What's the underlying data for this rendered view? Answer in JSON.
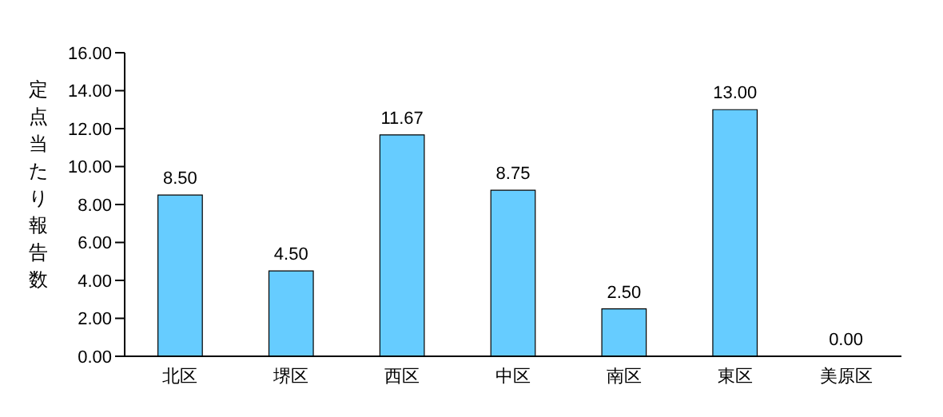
{
  "chart_data": {
    "type": "bar",
    "ylabel": "定点当たり報告数",
    "categories": [
      "北区",
      "堺区",
      "西区",
      "中区",
      "南区",
      "東区",
      "美原区"
    ],
    "values": [
      8.5,
      4.5,
      11.67,
      8.75,
      2.5,
      13.0,
      0.0
    ],
    "value_labels": [
      "8.50",
      "4.50",
      "11.67",
      "8.75",
      "2.50",
      "13.00",
      "0.00"
    ],
    "color": "#66ccff",
    "ylim": [
      0,
      16
    ],
    "yticks": [
      {
        "value": 0,
        "label": "0.00"
      },
      {
        "value": 2,
        "label": "2.00"
      },
      {
        "value": 4,
        "label": "4.00"
      },
      {
        "value": 6,
        "label": "6.00"
      },
      {
        "value": 8,
        "label": "8.00"
      },
      {
        "value": 10,
        "label": "10.00"
      },
      {
        "value": 12,
        "label": "12.00"
      },
      {
        "value": 14,
        "label": "14.00"
      },
      {
        "value": 16,
        "label": "16.00"
      }
    ],
    "grid": false,
    "legend": false
  }
}
